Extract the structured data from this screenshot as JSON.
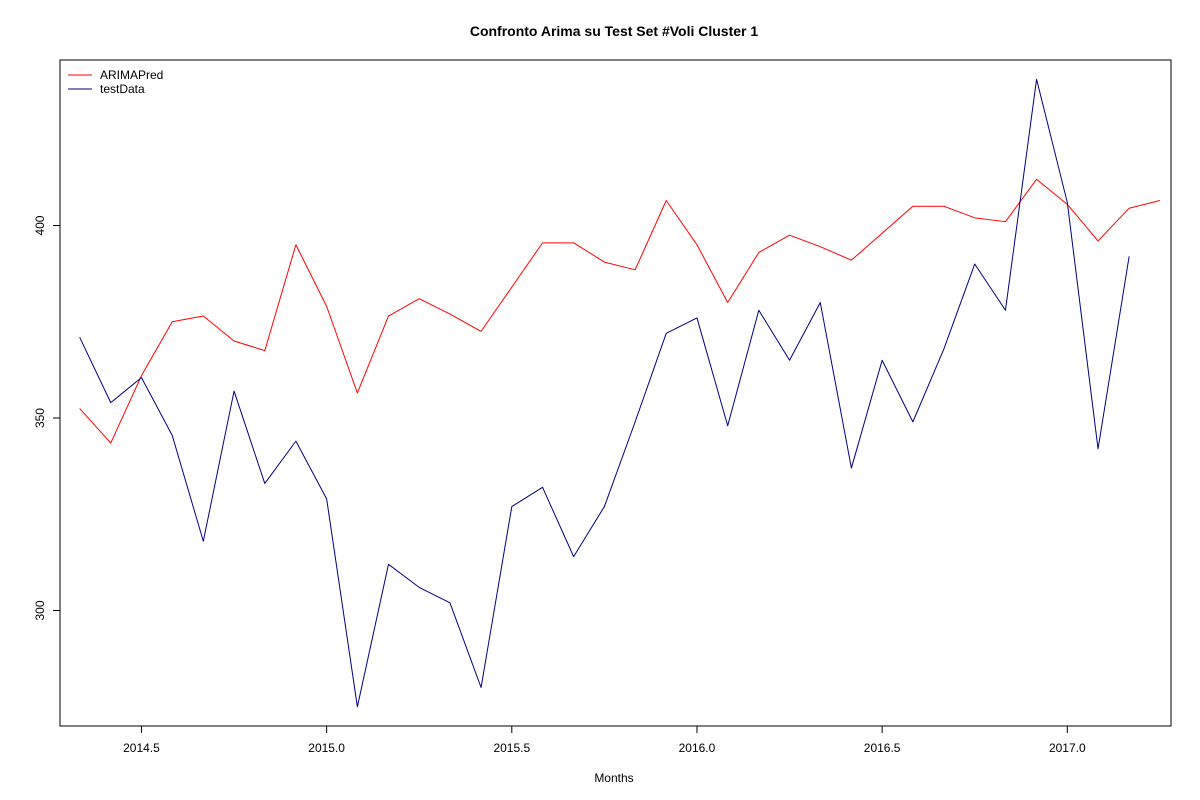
{
  "chart_data": {
    "type": "line",
    "title": "Confronto Arima su Test Set #Voli Cluster  1",
    "xlabel": "Months",
    "ylabel": "",
    "xlim": [
      2014.28,
      2017.28
    ],
    "ylim": [
      270,
      443
    ],
    "xticks": [
      2014.5,
      2015.0,
      2015.5,
      2016.0,
      2016.5,
      2017.0
    ],
    "xtick_labels": [
      "2014.5",
      "2015.0",
      "2015.5",
      "2016.0",
      "2016.5",
      "2017.0"
    ],
    "yticks": [
      300,
      350,
      400
    ],
    "ytick_labels": [
      "300",
      "350",
      "400"
    ],
    "grid": false,
    "legend": {
      "position": "top-left"
    },
    "series": [
      {
        "name": "ARIMAPred",
        "color": "#ff0000",
        "x": [
          2014.333,
          2014.417,
          2014.5,
          2014.583,
          2014.667,
          2014.75,
          2014.833,
          2014.917,
          2015.0,
          2015.083,
          2015.167,
          2015.25,
          2015.333,
          2015.417,
          2015.5,
          2015.583,
          2015.667,
          2015.75,
          2015.833,
          2015.917,
          2016.0,
          2016.083,
          2016.167,
          2016.25,
          2016.333,
          2016.417,
          2016.5,
          2016.583,
          2016.667,
          2016.75,
          2016.833,
          2016.917,
          2017.0,
          2017.083,
          2017.167,
          2017.25
        ],
        "values": [
          352.5,
          343.5,
          361,
          375,
          376.5,
          370,
          367.5,
          395,
          379,
          356.5,
          376.5,
          381,
          377,
          372.5,
          384,
          395.5,
          395.5,
          390.5,
          388.5,
          406.5,
          395,
          380,
          393,
          397.5,
          394.5,
          391,
          398,
          405,
          405,
          402,
          401,
          412,
          405.5,
          396,
          404.5,
          406.5
        ]
      },
      {
        "name": "testData",
        "color": "#000080",
        "x": [
          2014.333,
          2014.417,
          2014.5,
          2014.583,
          2014.667,
          2014.75,
          2014.833,
          2014.917,
          2015.0,
          2015.083,
          2015.167,
          2015.25,
          2015.333,
          2015.417,
          2015.5,
          2015.583,
          2015.667,
          2015.75,
          2015.833,
          2015.917,
          2016.0,
          2016.083,
          2016.167,
          2016.25,
          2016.333,
          2016.417,
          2016.5,
          2016.583,
          2016.667,
          2016.75,
          2016.833,
          2016.917,
          2017.0,
          2017.083,
          2017.167
        ],
        "values": [
          371,
          354,
          360.5,
          345.5,
          318,
          357,
          333,
          344,
          329,
          275,
          312,
          306,
          302,
          280,
          327,
          332,
          314,
          327,
          349,
          372,
          376,
          348,
          378,
          365,
          380,
          337,
          365,
          349,
          368,
          390,
          378,
          438,
          406,
          342,
          392
        ]
      }
    ]
  }
}
